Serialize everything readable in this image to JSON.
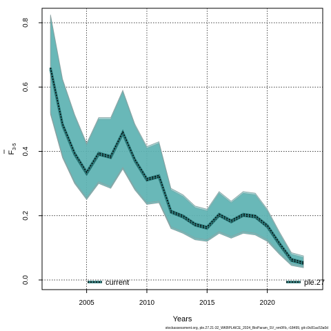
{
  "chart_data": {
    "type": "area",
    "xlabel": "Years",
    "ylabel": "F",
    "ylabel_subscript": "3-5",
    "xlim": [
      2001.3,
      2024.6
    ],
    "ylim": [
      -0.03,
      0.845
    ],
    "xticks": [
      2005,
      2010,
      2015,
      2020
    ],
    "yticks": [
      0.0,
      0.2,
      0.4,
      0.6,
      0.8
    ],
    "ytick_labels": [
      "0.0",
      "0.2",
      "0.4",
      "0.6",
      "0.8"
    ],
    "grid": true,
    "band_color": "#5fb3b3",
    "band_edge_color": "#8aa0a0",
    "x": [
      2002,
      2003,
      2004,
      2005,
      2006,
      2007,
      2008,
      2009,
      2010,
      2011,
      2012,
      2013,
      2014,
      2015,
      2016,
      2017,
      2018,
      2019,
      2020,
      2021,
      2022,
      2023
    ],
    "series": [
      {
        "name": "current",
        "median": [
          0.655,
          0.48,
          0.39,
          0.33,
          0.39,
          0.38,
          0.455,
          0.37,
          0.31,
          0.32,
          0.21,
          0.195,
          0.17,
          0.16,
          0.2,
          0.18,
          0.2,
          0.195,
          0.165,
          0.11,
          0.06,
          0.05
        ],
        "upper": [
          0.82,
          0.62,
          0.51,
          0.42,
          0.5,
          0.5,
          0.585,
          0.48,
          0.41,
          0.425,
          0.28,
          0.26,
          0.225,
          0.215,
          0.27,
          0.24,
          0.27,
          0.265,
          0.215,
          0.145,
          0.08,
          0.07
        ],
        "lower": [
          0.515,
          0.38,
          0.3,
          0.25,
          0.3,
          0.285,
          0.345,
          0.28,
          0.235,
          0.24,
          0.16,
          0.145,
          0.125,
          0.12,
          0.145,
          0.13,
          0.145,
          0.14,
          0.12,
          0.08,
          0.045,
          0.038
        ]
      },
      {
        "name": "ple.27",
        "median": [
          0.66,
          0.485,
          0.395,
          0.335,
          0.395,
          0.385,
          0.46,
          0.375,
          0.315,
          0.325,
          0.215,
          0.2,
          0.175,
          0.165,
          0.205,
          0.185,
          0.205,
          0.2,
          0.17,
          0.115,
          0.065,
          0.055
        ],
        "upper": [
          0.825,
          0.625,
          0.515,
          0.425,
          0.505,
          0.505,
          0.59,
          0.485,
          0.415,
          0.43,
          0.285,
          0.265,
          0.23,
          0.22,
          0.275,
          0.245,
          0.275,
          0.27,
          0.22,
          0.15,
          0.085,
          0.075
        ],
        "lower": [
          0.52,
          0.385,
          0.305,
          0.255,
          0.305,
          0.29,
          0.35,
          0.285,
          0.24,
          0.245,
          0.165,
          0.15,
          0.13,
          0.125,
          0.15,
          0.135,
          0.15,
          0.145,
          0.125,
          0.085,
          0.05,
          0.042
        ]
      }
    ],
    "legend": [
      {
        "label": "current",
        "line_color": "#000000",
        "outline_color": "#2e7d7d",
        "placement": "bottom-left"
      },
      {
        "label": "ple.27",
        "line_color": "#000000",
        "outline_color": "#2e7d7d",
        "placement": "bottom-right"
      }
    ],
    "footnote": "stockassessment.org, ple.27.21-32_WKBPLAICE_2024_BioParam_SV_nm0Fb, r18499, git:c9c81ac53a0d"
  }
}
